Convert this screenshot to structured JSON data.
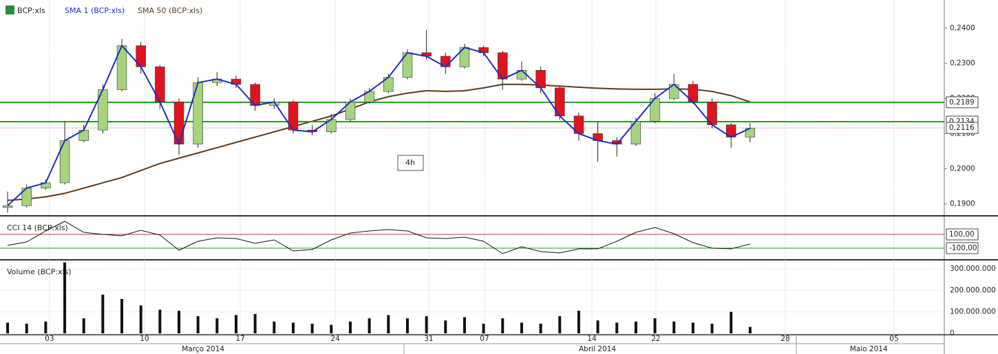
{
  "chart_data": {
    "type": "candlestick",
    "symbol": "BCP:xls",
    "sma_fast_name": "SMA 1 (BCP:xls)",
    "sma_slow_name": "SMA 50 (BCP:xls)",
    "interval": "4h",
    "up_color": "#a6d47c",
    "down_color": "#e0141e",
    "sma_fast_color": "#1a2fc0",
    "sma_slow_color": "#5a3a1e",
    "xlim": [
      -0.4,
      49.2
    ],
    "xticks": [
      {
        "value": 2.2,
        "label": "03"
      },
      {
        "value": 7.19,
        "label": "10"
      },
      {
        "value": 12.22,
        "label": "17"
      },
      {
        "value": 17.21,
        "label": "24"
      },
      {
        "value": 22.12,
        "label": "31"
      },
      {
        "value": 25.05,
        "label": "07"
      },
      {
        "value": 30.69,
        "label": "14"
      },
      {
        "value": 34.05,
        "label": "22"
      },
      {
        "value": 40.85,
        "label": "28"
      },
      {
        "value": 46.56,
        "label": "05"
      }
    ],
    "months": [
      {
        "value": 10.27,
        "label": "Março 2014"
      },
      {
        "value": 30.98,
        "label": "Abril 2014"
      },
      {
        "value": 45.23,
        "label": "Maio 2014"
      }
    ],
    "ylim": [
      0.1868,
      0.248
    ],
    "yticks": [
      {
        "value": 0.24,
        "label": "0,2400"
      },
      {
        "value": 0.23,
        "label": "0,2300"
      },
      {
        "value": 0.22,
        "label": "0,2200"
      },
      {
        "value": 0.21,
        "label": "0,2100"
      },
      {
        "value": 0.2,
        "label": "0,2000"
      },
      {
        "value": 0.19,
        "label": "0,1900"
      }
    ],
    "levels": [
      {
        "value": 0.2189,
        "label": "0,2189",
        "color": "#1a9e1a"
      },
      {
        "value": 0.2134,
        "label": "0,2134",
        "color": "#1a9e1a"
      },
      {
        "value": 0.2116,
        "label": "0,2116",
        "color": "#c05050"
      }
    ],
    "open": [
      0.189,
      0.1895,
      0.1945,
      0.196,
      0.208,
      0.211,
      0.2225,
      0.235,
      0.229,
      0.219,
      0.207,
      0.2245,
      0.2255,
      0.224,
      0.218,
      0.219,
      0.211,
      0.2105,
      0.214,
      0.219,
      0.222,
      0.226,
      0.233,
      0.232,
      0.229,
      0.2345,
      0.233,
      0.2255,
      0.228,
      0.223,
      0.215,
      0.21,
      0.208,
      0.207,
      0.2135,
      0.22,
      0.224,
      0.219,
      0.2125,
      0.209
    ],
    "high": [
      0.1935,
      0.1955,
      0.197,
      0.2135,
      0.2125,
      0.224,
      0.237,
      0.236,
      0.2295,
      0.22,
      0.226,
      0.2275,
      0.2265,
      0.2245,
      0.22,
      0.2195,
      0.2125,
      0.2155,
      0.22,
      0.223,
      0.227,
      0.234,
      0.2395,
      0.233,
      0.2355,
      0.235,
      0.2335,
      0.2305,
      0.229,
      0.2235,
      0.216,
      0.2135,
      0.209,
      0.2145,
      0.2215,
      0.227,
      0.225,
      0.22,
      0.213,
      0.213
    ],
    "low": [
      0.1875,
      0.189,
      0.194,
      0.1955,
      0.2075,
      0.21,
      0.222,
      0.227,
      0.217,
      0.204,
      0.206,
      0.2235,
      0.223,
      0.2165,
      0.217,
      0.21,
      0.2095,
      0.21,
      0.2135,
      0.2185,
      0.2215,
      0.2255,
      0.231,
      0.227,
      0.2285,
      0.232,
      0.2225,
      0.225,
      0.2215,
      0.214,
      0.208,
      0.202,
      0.2035,
      0.2065,
      0.213,
      0.2195,
      0.2185,
      0.2115,
      0.206,
      0.2075
    ],
    "close": [
      0.1895,
      0.1945,
      0.196,
      0.208,
      0.211,
      0.2225,
      0.235,
      0.229,
      0.219,
      0.207,
      0.2245,
      0.2255,
      0.224,
      0.218,
      0.219,
      0.211,
      0.2105,
      0.214,
      0.219,
      0.222,
      0.226,
      0.233,
      0.232,
      0.229,
      0.2345,
      0.233,
      0.2255,
      0.228,
      0.223,
      0.215,
      0.21,
      0.208,
      0.207,
      0.2135,
      0.22,
      0.224,
      0.219,
      0.2125,
      0.209,
      0.2115
    ],
    "sma50": [
      0.191,
      0.1914,
      0.192,
      0.193,
      0.1945,
      0.196,
      0.1975,
      0.1995,
      0.2015,
      0.203,
      0.2045,
      0.206,
      0.2075,
      0.209,
      0.2105,
      0.212,
      0.2135,
      0.215,
      0.217,
      0.219,
      0.2205,
      0.2215,
      0.2222,
      0.222,
      0.2222,
      0.223,
      0.224,
      0.224,
      0.2238,
      0.2235,
      0.2232,
      0.2229,
      0.2227,
      0.2226,
      0.2226,
      0.2227,
      0.2226,
      0.222,
      0.2208,
      0.219
    ],
    "cci": {
      "name": "CCI 14 (BCP:xls)",
      "ylim": [
        -330,
        330
      ],
      "yticks": [
        {
          "value": 100,
          "label": "100,00",
          "color": "#d03030"
        },
        {
          "value": -100,
          "label": "-100,00",
          "color": "#1a9e1a"
        }
      ],
      "values": [
        -60,
        -10,
        150,
        290,
        130,
        100,
        80,
        160,
        90,
        -130,
        0,
        50,
        40,
        -30,
        20,
        -140,
        -120,
        20,
        120,
        150,
        170,
        150,
        50,
        40,
        60,
        0,
        -180,
        -80,
        -150,
        -170,
        -110,
        -110,
        0,
        130,
        200,
        110,
        -20,
        -100,
        -110,
        -40
      ]
    },
    "volume": {
      "name": "Volume (BCP:xls)",
      "ylim": [
        0,
        310000000
      ],
      "yticks": [
        {
          "value": 0,
          "label": "0"
        },
        {
          "value": 100000000,
          "label": "100.000.000"
        },
        {
          "value": 200000000,
          "label": "200.000.000"
        },
        {
          "value": 300000000,
          "label": "300.000.000"
        }
      ],
      "values": [
        50000000,
        45000000,
        55000000,
        330000000,
        70000000,
        180000000,
        160000000,
        130000000,
        110000000,
        105000000,
        80000000,
        70000000,
        85000000,
        90000000,
        55000000,
        50000000,
        45000000,
        40000000,
        55000000,
        70000000,
        85000000,
        70000000,
        80000000,
        60000000,
        75000000,
        45000000,
        70000000,
        50000000,
        45000000,
        80000000,
        105000000,
        60000000,
        50000000,
        55000000,
        70000000,
        55000000,
        50000000,
        45000000,
        100000000,
        30000000
      ]
    }
  }
}
